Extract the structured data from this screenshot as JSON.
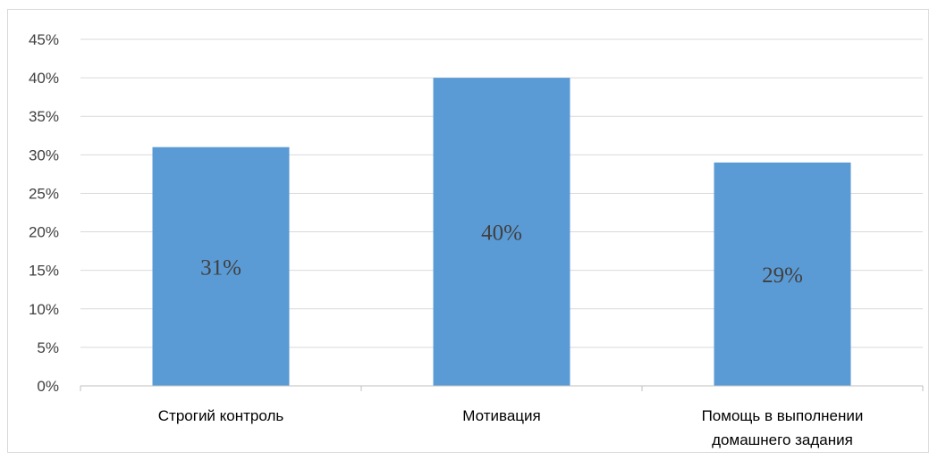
{
  "chart_data": {
    "type": "bar",
    "categories": [
      [
        "Строгий контроль"
      ],
      [
        "Мотивация"
      ],
      [
        "Помощь в выполнении",
        "домашнего задания"
      ]
    ],
    "values": [
      31,
      40,
      29
    ],
    "data_labels": [
      "31%",
      "40%",
      "29%"
    ],
    "y_ticks": [
      "0%",
      "5%",
      "10%",
      "15%",
      "20%",
      "25%",
      "30%",
      "35%",
      "40%",
      "45%"
    ],
    "ylim": [
      0,
      45
    ],
    "y_step": 5,
    "title": "",
    "xlabel": "",
    "ylabel": "",
    "grid": true,
    "legend": "none",
    "colors": {
      "bar": "#5b9bd5",
      "grid": "#d9d9d9",
      "axis": "#bfbfbf"
    }
  }
}
